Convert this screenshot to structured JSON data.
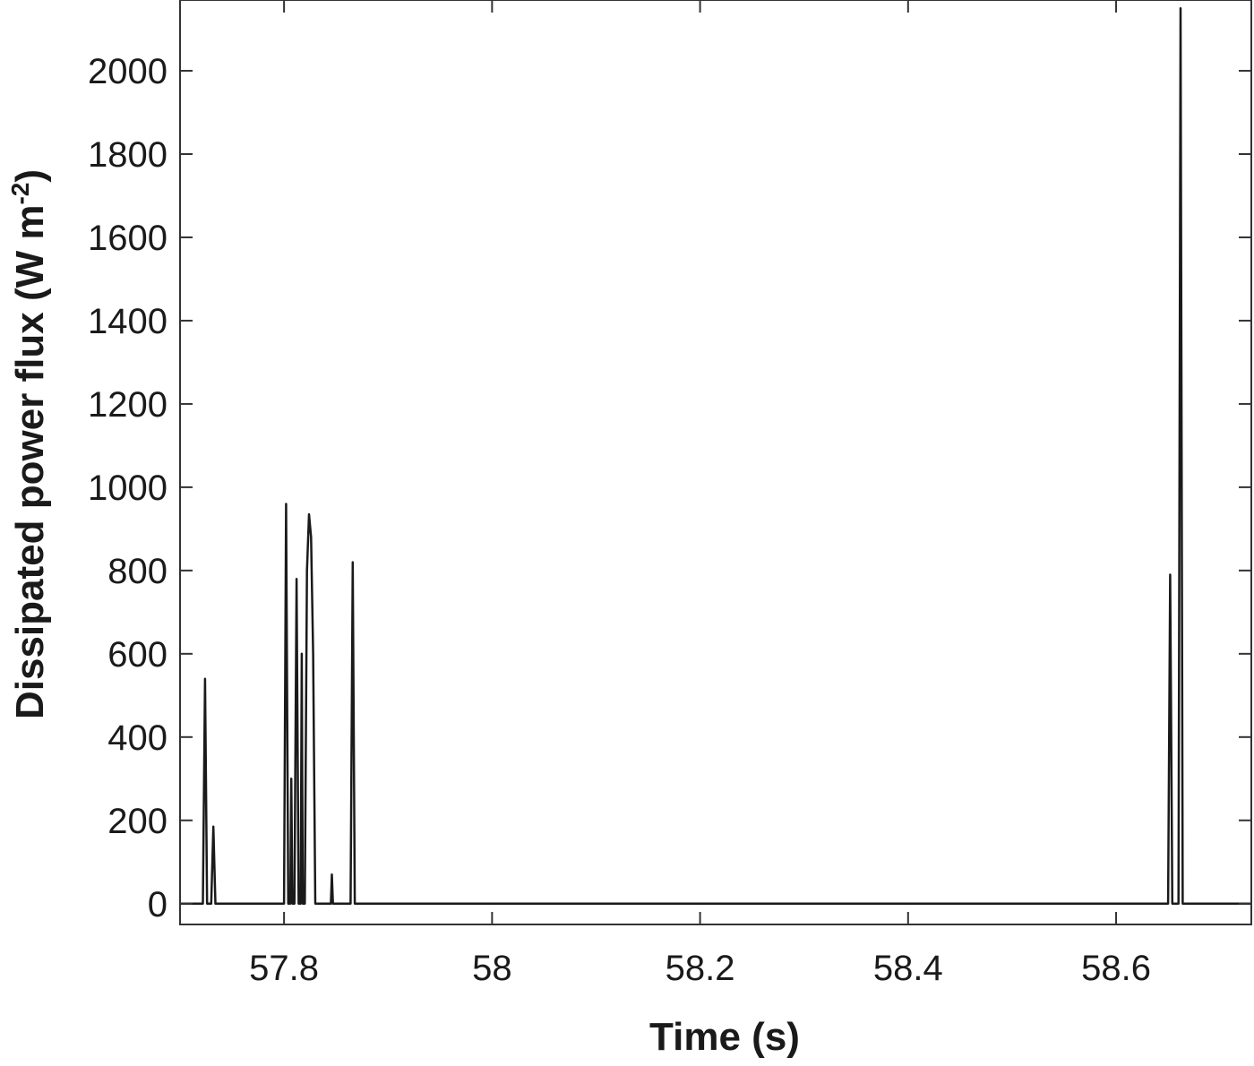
{
  "chart_data": {
    "type": "line",
    "title": "",
    "xlabel": "Time (s)",
    "ylabel": {
      "text": "Dissipated  power flux (W m",
      "exponent": "-2",
      "close": ")"
    },
    "xlim": [
      57.7,
      58.73
    ],
    "ylim": [
      -50,
      2170
    ],
    "xticks": [
      57.8,
      58.0,
      58.2,
      58.4,
      58.6
    ],
    "xtick_labels": [
      "57.8",
      "58",
      "58.2",
      "58.4",
      "58.6"
    ],
    "yticks": [
      0,
      200,
      400,
      600,
      800,
      1000,
      1200,
      1400,
      1600,
      1800,
      2000
    ],
    "ytick_labels": [
      "0",
      "200",
      "400",
      "600",
      "800",
      "1000",
      "1200",
      "1400",
      "1600",
      "1800",
      "2000"
    ],
    "grid": false,
    "line_color": "#1a1a1a",
    "series": [
      {
        "x": [
          57.7,
          57.722,
          57.724,
          57.726,
          57.73,
          57.732,
          57.734,
          57.736,
          57.8,
          57.802,
          57.804,
          57.806,
          57.807,
          57.808,
          57.81,
          57.812,
          57.814,
          57.816,
          57.817,
          57.818,
          57.82,
          57.822,
          57.824,
          57.826,
          57.828,
          57.83,
          57.832,
          57.845,
          57.846,
          57.847,
          57.864,
          57.866,
          57.868,
          58.65,
          58.652,
          58.654,
          58.656,
          58.66,
          58.662,
          58.664,
          58.73
        ],
        "y": [
          0,
          0,
          540,
          0,
          0,
          185,
          0,
          0,
          0,
          960,
          0,
          0,
          300,
          0,
          0,
          780,
          0,
          0,
          600,
          0,
          0,
          800,
          935,
          880,
          600,
          0,
          0,
          0,
          70,
          0,
          0,
          820,
          0,
          0,
          790,
          0,
          0,
          0,
          2150,
          0,
          0
        ]
      }
    ]
  }
}
